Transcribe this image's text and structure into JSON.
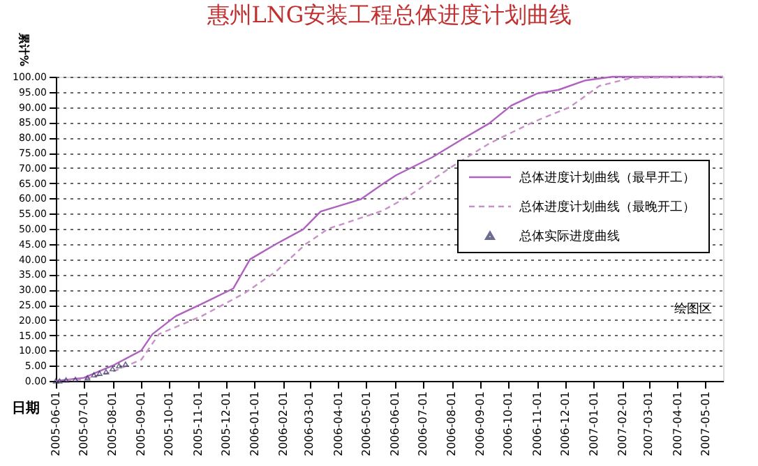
{
  "chart_data": {
    "type": "line",
    "title": "惠州LNG安装工程总体进度计划曲线",
    "xlabel": "日期",
    "ylabel": "累计%",
    "xlim": [
      "2005-06-01",
      "2007-05-20"
    ],
    "xticks": [
      "2005-06-01",
      "2005-07-01",
      "2005-08-01",
      "2005-09-01",
      "2005-10-01",
      "2005-11-01",
      "2005-12-01",
      "2006-01-01",
      "2006-02-01",
      "2006-03-01",
      "2006-04-01",
      "2006-05-01",
      "2006-06-01",
      "2006-07-01",
      "2006-08-01",
      "2006-09-01",
      "2006-10-01",
      "2006-11-01",
      "2006-12-01",
      "2007-01-01",
      "2007-02-01",
      "2007-03-01",
      "2007-04-01",
      "2007-05-01"
    ],
    "ylim": [
      0,
      100
    ],
    "yticks": [
      {
        "value": 0,
        "label": "0.00"
      },
      {
        "value": 5,
        "label": "5.00"
      },
      {
        "value": 10,
        "label": "10.00"
      },
      {
        "value": 15,
        "label": "15.00"
      },
      {
        "value": 20,
        "label": "20.00"
      },
      {
        "value": 25,
        "label": "25.00"
      },
      {
        "value": 30,
        "label": "30.00"
      },
      {
        "value": 35,
        "label": "35.00"
      },
      {
        "value": 40,
        "label": "40.00"
      },
      {
        "value": 45,
        "label": "45.00"
      },
      {
        "value": 50,
        "label": "50.00"
      },
      {
        "value": 55,
        "label": "55.00"
      },
      {
        "value": 60,
        "label": "60.00"
      },
      {
        "value": 65,
        "label": "65.00"
      },
      {
        "value": 70,
        "label": "70.00"
      },
      {
        "value": 75,
        "label": "75.00"
      },
      {
        "value": 80,
        "label": "80.00"
      },
      {
        "value": 85,
        "label": "85.00"
      },
      {
        "value": 90,
        "label": "90.00"
      },
      {
        "value": 95,
        "label": "95.00"
      },
      {
        "value": 100,
        "label": "100.00"
      }
    ],
    "grid": "y",
    "legend": "right",
    "annotations": [
      "绘图区"
    ],
    "series": [
      {
        "name": "总体进度计划曲线（最早开工）",
        "line_style": "solid",
        "marker": "none",
        "color": "#b060c0",
        "x": [
          "2005-06-01",
          "2005-07-01",
          "2005-08-01",
          "2005-09-01",
          "2005-09-13",
          "2005-10-08",
          "2005-11-05",
          "2005-12-09",
          "2005-12-27",
          "2006-01-24",
          "2006-02-22",
          "2006-03-13",
          "2006-04-25",
          "2006-05-19",
          "2006-06-02",
          "2006-07-11",
          "2006-08-12",
          "2006-09-10",
          "2006-10-04",
          "2006-11-01",
          "2006-11-24",
          "2006-12-23",
          "2007-01-21",
          "2007-05-20"
        ],
        "values": [
          0,
          1,
          5,
          10,
          15.4,
          21.3,
          25.3,
          30.4,
          40,
          45,
          49.8,
          55.7,
          59.7,
          64.8,
          67.6,
          73.5,
          79.4,
          84.6,
          90.5,
          94.5,
          95.7,
          98.8,
          100,
          100
        ]
      },
      {
        "name": "总体进度计划曲线（最晚开工）",
        "line_style": "dashed",
        "marker": "none",
        "color": "#c890c8",
        "x": [
          "2005-06-01",
          "2005-07-01",
          "2005-08-01",
          "2005-09-01",
          "2005-09-20",
          "2005-11-05",
          "2005-12-22",
          "2006-01-24",
          "2006-02-25",
          "2006-03-21",
          "2006-05-19",
          "2006-06-17",
          "2006-07-30",
          "2006-09-10",
          "2006-10-27",
          "2006-12-06",
          "2007-01-07",
          "2007-02-10",
          "2007-05-20"
        ],
        "values": [
          0,
          0.5,
          3,
          7,
          15.4,
          21.3,
          29,
          36,
          45,
          50,
          56,
          61,
          70,
          78,
          85,
          90,
          97,
          99.6,
          100
        ]
      },
      {
        "name": "总体实际进度曲线",
        "type": "scatter",
        "marker": "triangle",
        "color": "#303060",
        "x": [
          "2005-06-01",
          "2005-06-05",
          "2005-06-12",
          "2005-06-22",
          "2005-07-05",
          "2005-07-12",
          "2005-07-18",
          "2005-07-25",
          "2005-08-01",
          "2005-08-08",
          "2005-08-15"
        ],
        "values": [
          0,
          0,
          0.3,
          0.5,
          1,
          2,
          2.5,
          3,
          4,
          5,
          5.5
        ]
      }
    ]
  }
}
